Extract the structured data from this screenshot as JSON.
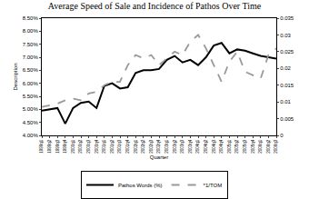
{
  "chart_data": {
    "type": "line",
    "title": "Average Speed of Sale and Incidence of Pathos Over Time",
    "x_label": "Quarter",
    "y_label": "Description",
    "categories": [
      "1999q1",
      "1999q2",
      "1999q3",
      "1999q4",
      "2000q1",
      "2000q2",
      "2000q3",
      "2000q4",
      "2001q1",
      "2001q2",
      "2001q3",
      "2001q4",
      "2002q1",
      "2002q2",
      "2002q3",
      "2002q4",
      "2003q1",
      "2003q2",
      "2003q3",
      "2003q4",
      "2004q1",
      "2004q2",
      "2004q3",
      "2004q4",
      "2005q1",
      "2005q2",
      "2005q3",
      "2005q4",
      "2006q1",
      "2006q2",
      "2006q3"
    ],
    "series": [
      {
        "name": "Pathos Words (%)",
        "color": "#000000",
        "line_style": "solid",
        "values": [
          4.95,
          5.0,
          5.05,
          4.45,
          5.05,
          5.25,
          5.3,
          5.05,
          5.9,
          6.0,
          5.8,
          5.85,
          6.4,
          6.5,
          6.5,
          6.55,
          6.9,
          7.05,
          6.8,
          6.9,
          6.7,
          7.0,
          7.45,
          7.55,
          7.15,
          7.3,
          7.25,
          7.15,
          7.05,
          7.0,
          6.95
        ]
      },
      {
        "name": "*1/TOM",
        "color": "#999999",
        "line_style": "dash",
        "axis": "y2",
        "values": [
          0.0085,
          0.009,
          0.0095,
          0.0105,
          0.011,
          0.0105,
          0.0125,
          0.013,
          0.015,
          0.016,
          0.016,
          0.021,
          0.024,
          0.023,
          0.024,
          0.021,
          0.023,
          0.025,
          0.024,
          0.028,
          0.03,
          0.026,
          0.021,
          0.016,
          0.022,
          0.025,
          0.019,
          0.018,
          0.017,
          0.024,
          0.026
        ]
      }
    ],
    "ylim": [
      4.0,
      8.5
    ],
    "yticks": [
      {
        "value": 4.0,
        "label": "4.00%"
      },
      {
        "value": 4.5,
        "label": "4.50%"
      },
      {
        "value": 5.0,
        "label": "5.00%"
      },
      {
        "value": 5.5,
        "label": "5.50%"
      },
      {
        "value": 6.0,
        "label": "6.00%"
      },
      {
        "value": 6.5,
        "label": "6.50%"
      },
      {
        "value": 7.0,
        "label": "7.00%"
      },
      {
        "value": 7.5,
        "label": "7.50%"
      },
      {
        "value": 8.0,
        "label": "8.00%"
      },
      {
        "value": 8.5,
        "label": "8.50%"
      }
    ],
    "y2lim": [
      0,
      0.035
    ],
    "y2ticks": [
      0,
      0.005,
      0.01,
      0.015,
      0.02,
      0.025,
      0.03,
      0.035
    ],
    "grid": false,
    "legend": "bottom"
  }
}
